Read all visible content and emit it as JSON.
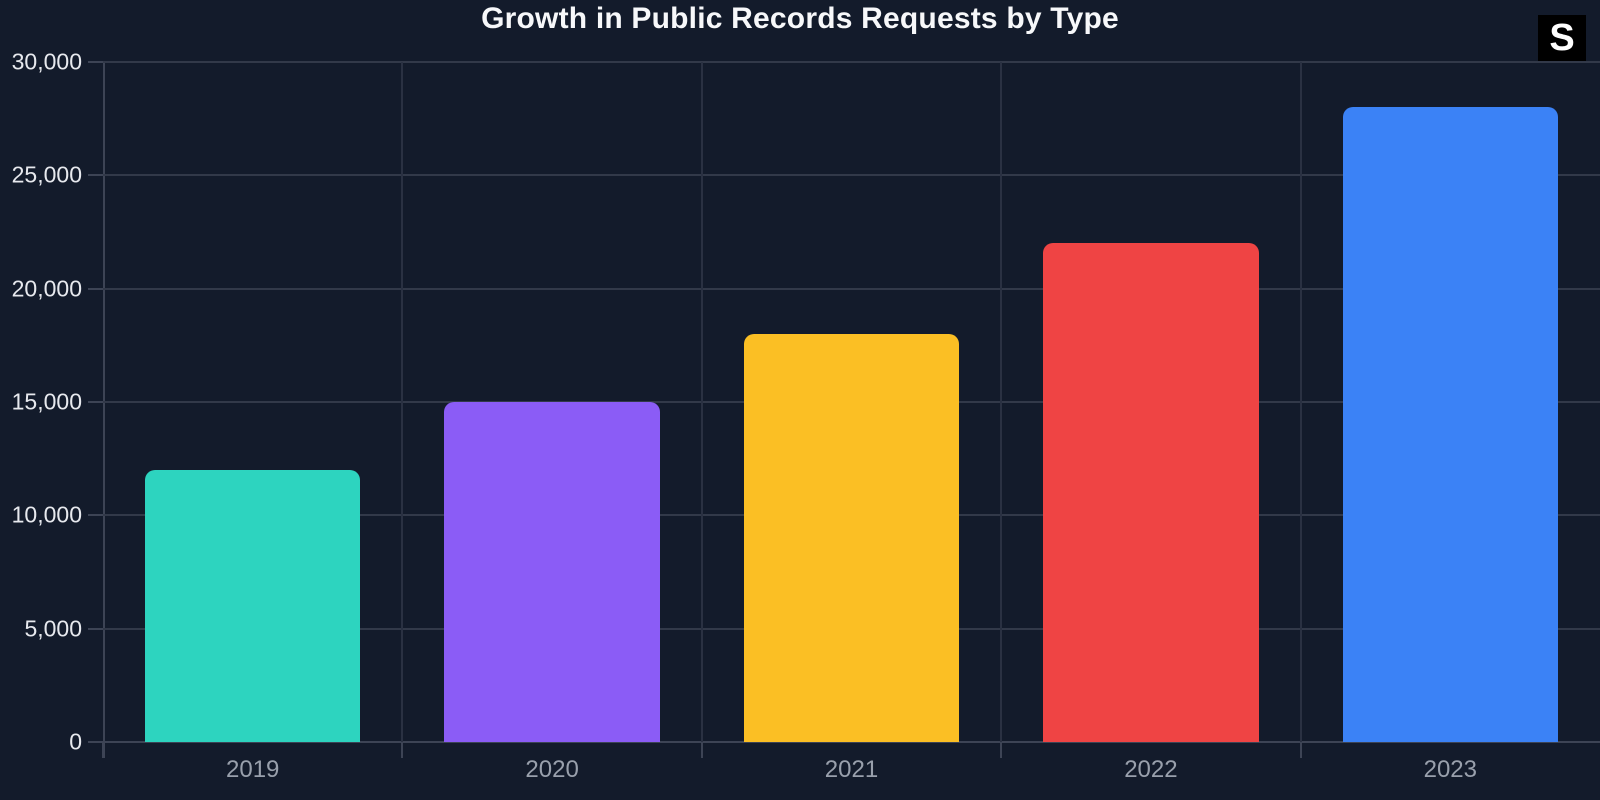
{
  "background_color": "#131b2b",
  "branding": {
    "logo_text": "S",
    "logo_bg": "#000000",
    "logo_color": "#ffffff"
  },
  "chart_data": {
    "type": "bar",
    "title": "Growth in Public Records Requests by Type",
    "categories": [
      "2019",
      "2020",
      "2021",
      "2022",
      "2023"
    ],
    "values": [
      12000,
      15000,
      18000,
      22000,
      28000
    ],
    "bar_colors": [
      "#2dd4bf",
      "#8b5cf6",
      "#fbbf24",
      "#ef4444",
      "#3b82f6"
    ],
    "ylim": [
      0,
      30000
    ],
    "y_tick_step": 5000,
    "y_tick_labels": [
      "0",
      "5,000",
      "10,000",
      "15,000",
      "20,000",
      "25,000",
      "30,000"
    ],
    "xlabel": "",
    "ylabel": "",
    "legend": "none",
    "grid": "on",
    "colors": {
      "grid_h": "#323949",
      "grid_v": "#2a3142",
      "axis": "#3d4455",
      "y_tick_label": "#e7e9ee",
      "x_tick_label": "#99a0ac",
      "title": "#f7f8fa"
    }
  }
}
